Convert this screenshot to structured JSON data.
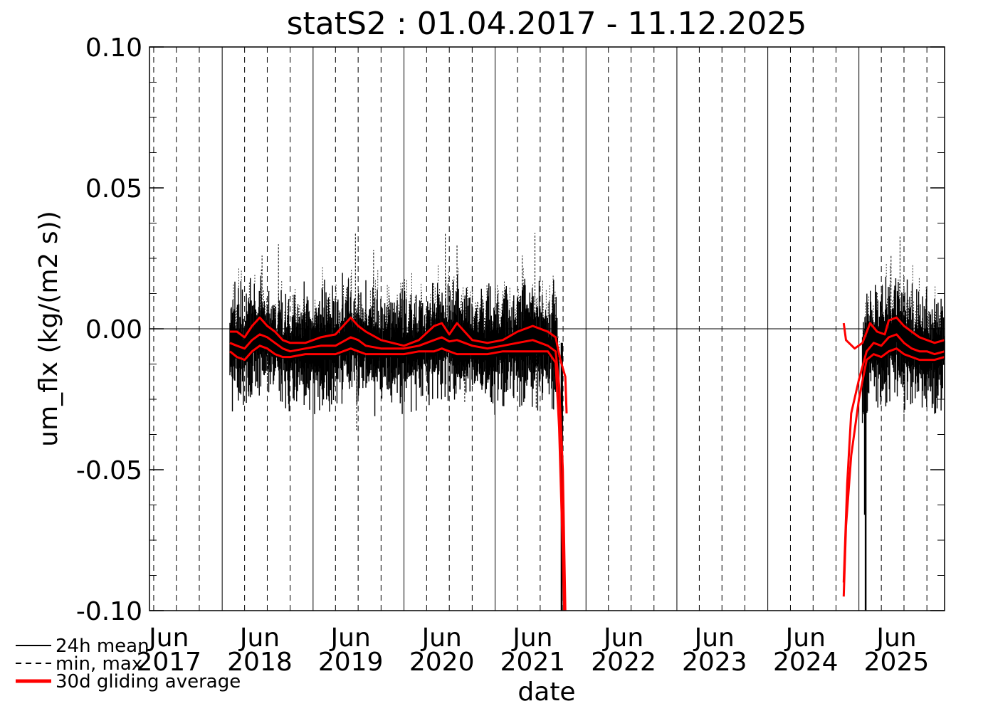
{
  "chart_data": {
    "type": "line",
    "title": "statS2 : 01.04.2017 - 11.12.2025",
    "xlabel": "date",
    "ylabel": "um_flx (kg/(m2 s))",
    "ylim": [
      -0.1,
      0.1
    ],
    "xlim": [
      "2017-03-15",
      "2025-12-11"
    ],
    "yticks": [
      {
        "value": 0.1,
        "label": "0.10"
      },
      {
        "value": 0.05,
        "label": "0.05"
      },
      {
        "value": 0.0,
        "label": "0.00"
      },
      {
        "value": -0.05,
        "label": "-0.05"
      },
      {
        "value": -0.1,
        "label": "-0.10"
      }
    ],
    "xticks": [
      {
        "date": "2017-06-01",
        "month": "Jun",
        "year": "2017"
      },
      {
        "date": "2018-06-01",
        "month": "Jun",
        "year": "2018"
      },
      {
        "date": "2019-06-01",
        "month": "Jun",
        "year": "2019"
      },
      {
        "date": "2020-06-01",
        "month": "Jun",
        "year": "2020"
      },
      {
        "date": "2021-06-01",
        "month": "Jun",
        "year": "2021"
      },
      {
        "date": "2022-06-01",
        "month": "Jun",
        "year": "2022"
      },
      {
        "date": "2023-06-01",
        "month": "Jun",
        "year": "2023"
      },
      {
        "date": "2024-06-01",
        "month": "Jun",
        "year": "2024"
      },
      {
        "date": "2025-06-01",
        "month": "Jun",
        "year": "2025"
      }
    ],
    "year_boundaries": [
      "2018-01-01",
      "2019-01-01",
      "2020-01-01",
      "2021-01-01",
      "2022-01-01",
      "2023-01-01",
      "2024-01-01",
      "2025-01-01"
    ],
    "quarter_marks": [
      "2017-04-01",
      "2017-07-01",
      "2017-10-01",
      "2018-04-01",
      "2018-07-01",
      "2018-10-01",
      "2019-04-01",
      "2019-07-01",
      "2019-10-01",
      "2020-04-01",
      "2020-07-01",
      "2020-10-01",
      "2021-04-01",
      "2021-07-01",
      "2021-10-01",
      "2022-04-01",
      "2022-07-01",
      "2022-10-01",
      "2023-04-01",
      "2023-07-01",
      "2023-10-01",
      "2024-04-01",
      "2024-07-01",
      "2024-10-01",
      "2025-04-01",
      "2025-07-01",
      "2025-10-01"
    ],
    "zero_line": 0,
    "grid": true,
    "legend_position": "bottom-left",
    "series": [
      {
        "name": "30d gliding average",
        "role": "mean",
        "color": "#ff0000",
        "points": [
          [
            "2018-02-01",
            -0.005
          ],
          [
            "2018-03-01",
            -0.006
          ],
          [
            "2018-04-01",
            -0.007
          ],
          [
            "2018-05-01",
            -0.004
          ],
          [
            "2018-06-01",
            -0.002
          ],
          [
            "2018-07-01",
            -0.003
          ],
          [
            "2018-08-01",
            -0.005
          ],
          [
            "2018-09-01",
            -0.007
          ],
          [
            "2018-10-01",
            -0.008
          ],
          [
            "2018-12-01",
            -0.007
          ],
          [
            "2019-02-01",
            -0.006
          ],
          [
            "2019-04-01",
            -0.006
          ],
          [
            "2019-06-01",
            -0.003
          ],
          [
            "2019-07-01",
            -0.004
          ],
          [
            "2019-08-01",
            -0.006
          ],
          [
            "2019-10-01",
            -0.007
          ],
          [
            "2020-01-01",
            -0.007
          ],
          [
            "2020-03-01",
            -0.006
          ],
          [
            "2020-05-01",
            -0.004
          ],
          [
            "2020-06-01",
            -0.003
          ],
          [
            "2020-07-01",
            -0.0045
          ],
          [
            "2020-08-01",
            -0.004
          ],
          [
            "2020-10-01",
            -0.006
          ],
          [
            "2020-12-01",
            -0.007
          ],
          [
            "2021-02-01",
            -0.006
          ],
          [
            "2021-04-01",
            -0.005
          ],
          [
            "2021-06-01",
            -0.004
          ],
          [
            "2021-08-01",
            -0.006
          ],
          [
            "2021-09-01",
            -0.008
          ],
          [
            "2021-09-15",
            -0.02
          ],
          [
            "2021-09-30",
            -0.05
          ],
          [
            "2021-10-10",
            -0.1
          ]
        ]
      },
      {
        "name": "30d gliding average",
        "role": "max",
        "color": "#ff0000",
        "points": [
          [
            "2018-02-01",
            -0.001
          ],
          [
            "2018-03-01",
            -0.001
          ],
          [
            "2018-04-01",
            -0.003
          ],
          [
            "2018-05-01",
            0.001
          ],
          [
            "2018-06-01",
            0.004
          ],
          [
            "2018-07-01",
            0.001
          ],
          [
            "2018-08-01",
            -0.001
          ],
          [
            "2018-09-01",
            -0.004
          ],
          [
            "2018-10-01",
            -0.005
          ],
          [
            "2018-12-01",
            -0.005
          ],
          [
            "2019-02-01",
            -0.003
          ],
          [
            "2019-04-01",
            -0.002
          ],
          [
            "2019-06-01",
            0.004
          ],
          [
            "2019-07-01",
            0.001
          ],
          [
            "2019-08-01",
            -0.001
          ],
          [
            "2019-10-01",
            -0.004
          ],
          [
            "2020-01-01",
            -0.006
          ],
          [
            "2020-03-01",
            -0.004
          ],
          [
            "2020-05-01",
            0.001
          ],
          [
            "2020-06-01",
            0.002
          ],
          [
            "2020-07-01",
            -0.002
          ],
          [
            "2020-08-01",
            0.002
          ],
          [
            "2020-10-01",
            -0.004
          ],
          [
            "2020-12-01",
            -0.005
          ],
          [
            "2021-02-01",
            -0.004
          ],
          [
            "2021-04-01",
            -0.001
          ],
          [
            "2021-06-01",
            0.001
          ],
          [
            "2021-08-01",
            -0.001
          ],
          [
            "2021-09-01",
            -0.003
          ],
          [
            "2021-09-20",
            -0.011
          ],
          [
            "2021-10-10",
            -0.017
          ],
          [
            "2021-10-15",
            -0.03
          ]
        ]
      },
      {
        "name": "30d gliding average",
        "role": "min",
        "color": "#ff0000",
        "points": [
          [
            "2018-02-01",
            -0.008
          ],
          [
            "2018-03-01",
            -0.01
          ],
          [
            "2018-04-01",
            -0.011
          ],
          [
            "2018-05-01",
            -0.008
          ],
          [
            "2018-06-01",
            -0.006
          ],
          [
            "2018-07-01",
            -0.007
          ],
          [
            "2018-08-01",
            -0.009
          ],
          [
            "2018-09-01",
            -0.01
          ],
          [
            "2018-10-01",
            -0.01
          ],
          [
            "2018-12-01",
            -0.009
          ],
          [
            "2019-02-01",
            -0.009
          ],
          [
            "2019-04-01",
            -0.009
          ],
          [
            "2019-06-01",
            -0.007
          ],
          [
            "2019-07-01",
            -0.008
          ],
          [
            "2019-08-01",
            -0.009
          ],
          [
            "2019-10-01",
            -0.009
          ],
          [
            "2020-01-01",
            -0.009
          ],
          [
            "2020-03-01",
            -0.008
          ],
          [
            "2020-05-01",
            -0.008
          ],
          [
            "2020-06-01",
            -0.007
          ],
          [
            "2020-07-01",
            -0.008
          ],
          [
            "2020-08-01",
            -0.009
          ],
          [
            "2020-10-01",
            -0.009
          ],
          [
            "2020-12-01",
            -0.009
          ],
          [
            "2021-02-01",
            -0.008
          ],
          [
            "2021-04-01",
            -0.008
          ],
          [
            "2021-06-01",
            -0.008
          ],
          [
            "2021-08-01",
            -0.008
          ],
          [
            "2021-09-01",
            -0.012
          ],
          [
            "2021-09-15",
            -0.035
          ],
          [
            "2021-09-30",
            -0.08
          ],
          [
            "2021-10-05",
            -0.1
          ]
        ]
      },
      {
        "name": "30d gliding average",
        "role": "mean-2025",
        "color": "#ff0000",
        "points": [
          [
            "2024-11-01",
            -0.09
          ],
          [
            "2024-11-15",
            -0.055
          ],
          [
            "2024-12-01",
            -0.03
          ],
          [
            "2025-01-01",
            -0.018
          ],
          [
            "2025-02-01",
            -0.008
          ],
          [
            "2025-03-01",
            -0.005
          ],
          [
            "2025-04-01",
            -0.006
          ],
          [
            "2025-05-01",
            -0.003
          ],
          [
            "2025-06-01",
            -0.002
          ],
          [
            "2025-07-01",
            -0.005
          ],
          [
            "2025-08-01",
            -0.007
          ],
          [
            "2025-09-01",
            -0.008
          ],
          [
            "2025-10-01",
            -0.008
          ],
          [
            "2025-11-01",
            -0.009
          ],
          [
            "2025-12-11",
            -0.008
          ]
        ]
      },
      {
        "name": "30d gliding average",
        "role": "max-2025",
        "color": "#ff0000",
        "points": [
          [
            "2024-11-01",
            0.002
          ],
          [
            "2024-11-10",
            -0.004
          ],
          [
            "2024-12-15",
            -0.007
          ],
          [
            "2025-01-15",
            -0.005
          ],
          [
            "2025-02-15",
            0.002
          ],
          [
            "2025-03-15",
            -0.001
          ],
          [
            "2025-04-15",
            -0.002
          ],
          [
            "2025-05-01",
            0.003
          ],
          [
            "2025-06-01",
            0.004
          ],
          [
            "2025-07-01",
            0.001
          ],
          [
            "2025-08-01",
            -0.001
          ],
          [
            "2025-09-01",
            -0.003
          ],
          [
            "2025-10-01",
            -0.004
          ],
          [
            "2025-11-01",
            -0.005
          ],
          [
            "2025-12-11",
            -0.004
          ]
        ]
      },
      {
        "name": "30d gliding average",
        "role": "min-2025",
        "color": "#ff0000",
        "points": [
          [
            "2024-11-01",
            -0.095
          ],
          [
            "2024-11-10",
            -0.07
          ],
          [
            "2024-12-01",
            -0.045
          ],
          [
            "2025-01-01",
            -0.025
          ],
          [
            "2025-02-01",
            -0.011
          ],
          [
            "2025-03-01",
            -0.009
          ],
          [
            "2025-04-01",
            -0.01
          ],
          [
            "2025-05-01",
            -0.008
          ],
          [
            "2025-06-01",
            -0.007
          ],
          [
            "2025-07-01",
            -0.009
          ],
          [
            "2025-08-01",
            -0.01
          ],
          [
            "2025-09-01",
            -0.011
          ],
          [
            "2025-10-01",
            -0.011
          ],
          [
            "2025-11-01",
            -0.011
          ],
          [
            "2025-12-11",
            -0.01
          ]
        ]
      }
    ],
    "daily_envelope": {
      "name": "24h mean",
      "color": "#000000",
      "segments": [
        {
          "start": "2018-02-01",
          "end": "2021-09-15"
        },
        {
          "start": "2025-01-15",
          "end": "2025-12-11"
        }
      ],
      "spikes": [
        [
          "2021-09-25",
          -0.1
        ],
        [
          "2021-09-27",
          -0.064
        ],
        [
          "2025-01-25",
          -0.066
        ],
        [
          "2025-01-28",
          -0.1
        ]
      ]
    },
    "minmax_envelope": {
      "name": "min, max",
      "color": "#000000",
      "peaks": [
        [
          "2018-06-10",
          0.026
        ],
        [
          "2018-08-15",
          0.03
        ],
        [
          "2019-06-20",
          0.034
        ],
        [
          "2019-09-01",
          0.028
        ],
        [
          "2020-06-15",
          0.034
        ],
        [
          "2020-08-01",
          0.03
        ],
        [
          "2021-06-10",
          0.034
        ],
        [
          "2021-04-20",
          0.026
        ],
        [
          "2025-06-15",
          0.033
        ],
        [
          "2025-05-10",
          0.026
        ]
      ],
      "troughs": [
        [
          "2019-06-25",
          -0.036
        ],
        [
          "2018-07-01",
          -0.022
        ],
        [
          "2020-09-01",
          -0.026
        ],
        [
          "2021-06-15",
          -0.028
        ],
        [
          "2025-07-01",
          -0.033
        ]
      ]
    }
  },
  "legend": {
    "items": [
      {
        "label": "24h mean",
        "style": "solid",
        "color": "#000000"
      },
      {
        "label": "min, max",
        "style": "dashed",
        "color": "#000000"
      },
      {
        "label": "30d gliding average",
        "style": "solid",
        "color": "#ff0000"
      }
    ]
  }
}
